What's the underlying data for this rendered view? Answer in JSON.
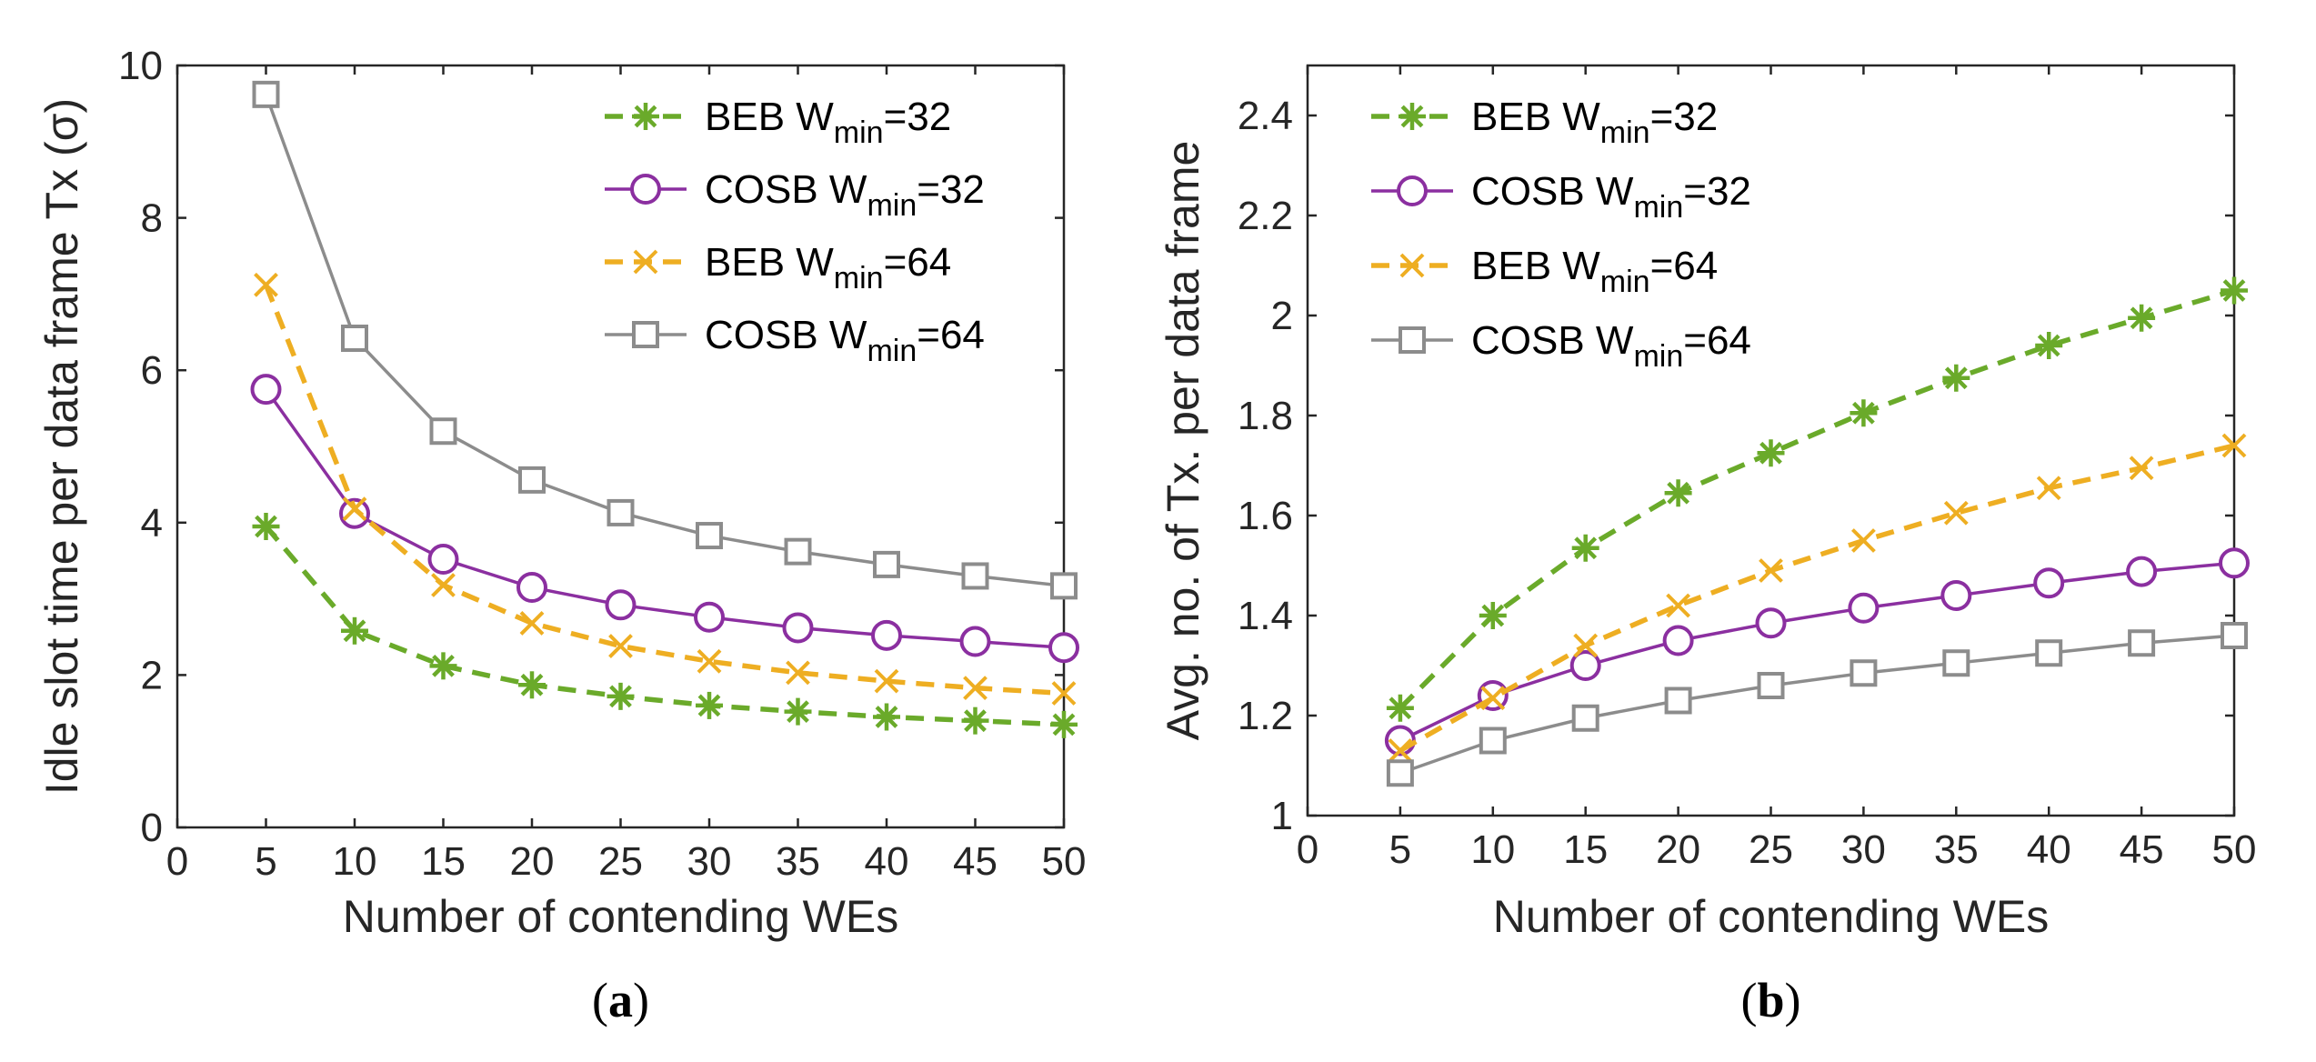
{
  "chart_data": [
    {
      "type": "line",
      "panel": "a",
      "caption": {
        "open": "(",
        "letter": "a",
        "close": ")"
      },
      "xlabel": "Number of contending WEs",
      "ylabel": "Idle slot time per data frame Tx (σ)",
      "xlim": [
        0,
        50
      ],
      "ylim": [
        0,
        10
      ],
      "xticks": [
        0,
        5,
        10,
        15,
        20,
        25,
        30,
        35,
        40,
        45,
        50
      ],
      "yticks": [
        0,
        2,
        4,
        6,
        8,
        10
      ],
      "x": [
        5,
        10,
        15,
        20,
        25,
        30,
        35,
        40,
        45,
        50
      ],
      "legend_position": "top-right",
      "series": [
        {
          "name": "BEB W",
          "sub": "min",
          "suffix": "=32",
          "color": "#6aaa2a",
          "marker": "asterisk",
          "dash": true,
          "values": [
            3.95,
            2.58,
            2.12,
            1.87,
            1.72,
            1.6,
            1.52,
            1.45,
            1.4,
            1.35
          ]
        },
        {
          "name": "COSB W",
          "sub": "min",
          "suffix": "=32",
          "color": "#8b2fa0",
          "marker": "circle",
          "dash": false,
          "values": [
            5.75,
            4.12,
            3.52,
            3.15,
            2.92,
            2.76,
            2.62,
            2.52,
            2.44,
            2.36
          ]
        },
        {
          "name": "BEB W",
          "sub": "min",
          "suffix": "=64",
          "color": "#eeae22",
          "marker": "x",
          "dash": true,
          "values": [
            7.12,
            4.18,
            3.18,
            2.68,
            2.38,
            2.18,
            2.03,
            1.92,
            1.83,
            1.76
          ]
        },
        {
          "name": "COSB W",
          "sub": "min",
          "suffix": "=64",
          "color": "#8c8c8c",
          "marker": "square",
          "dash": false,
          "values": [
            9.62,
            6.42,
            5.2,
            4.56,
            4.13,
            3.83,
            3.62,
            3.45,
            3.3,
            3.17
          ]
        }
      ]
    },
    {
      "type": "line",
      "panel": "b",
      "caption": {
        "open": "(",
        "letter": "b",
        "close": ")"
      },
      "xlabel": "Number of contending WEs",
      "ylabel": "Avg. no. of Tx. per data frame",
      "xlim": [
        0,
        50
      ],
      "ylim": [
        1,
        2.5
      ],
      "xticks": [
        0,
        5,
        10,
        15,
        20,
        25,
        30,
        35,
        40,
        45,
        50
      ],
      "yticks": [
        1,
        1.2,
        1.4,
        1.6,
        1.8,
        2,
        2.2,
        2.4
      ],
      "ytick_labels": [
        "1",
        "1.2",
        "1.4",
        "1.6",
        "1.8",
        "2",
        "2.2",
        "2.4"
      ],
      "x": [
        5,
        10,
        15,
        20,
        25,
        30,
        35,
        40,
        45,
        50
      ],
      "legend_position": "top-left",
      "series": [
        {
          "name": "BEB W",
          "sub": "min",
          "suffix": "=32",
          "color": "#6aaa2a",
          "marker": "asterisk",
          "dash": true,
          "values": [
            1.215,
            1.4,
            1.535,
            1.645,
            1.725,
            1.805,
            1.875,
            1.94,
            1.995,
            2.05
          ]
        },
        {
          "name": "COSB W",
          "sub": "min",
          "suffix": "=32",
          "color": "#8b2fa0",
          "marker": "circle",
          "dash": false,
          "values": [
            1.15,
            1.24,
            1.3,
            1.35,
            1.385,
            1.415,
            1.44,
            1.465,
            1.488,
            1.505
          ]
        },
        {
          "name": "BEB W",
          "sub": "min",
          "suffix": "=64",
          "color": "#eeae22",
          "marker": "x",
          "dash": true,
          "values": [
            1.13,
            1.235,
            1.34,
            1.42,
            1.49,
            1.55,
            1.605,
            1.655,
            1.695,
            1.74
          ]
        },
        {
          "name": "COSB W",
          "sub": "min",
          "suffix": "=64",
          "color": "#8c8c8c",
          "marker": "square",
          "dash": false,
          "values": [
            1.085,
            1.15,
            1.195,
            1.23,
            1.26,
            1.285,
            1.305,
            1.325,
            1.345,
            1.36
          ]
        }
      ]
    }
  ]
}
